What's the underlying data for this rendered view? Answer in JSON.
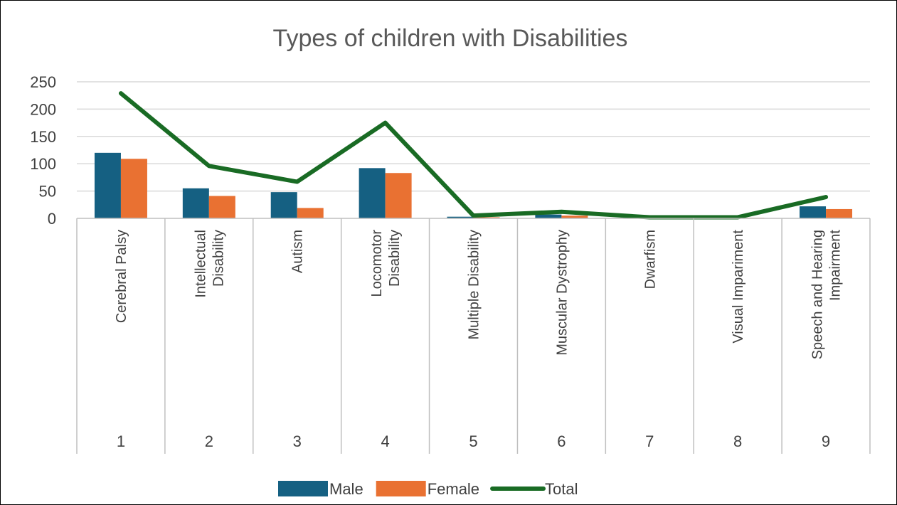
{
  "chart_data": {
    "type": "bar",
    "title": "Types of children with Disabilities",
    "xlabel": "",
    "ylabel": "",
    "ylim": [
      0,
      250
    ],
    "yticks": [
      0,
      50,
      100,
      150,
      200,
      250
    ],
    "grid": true,
    "legend_position": "bottom",
    "category_numbers": [
      "1",
      "2",
      "3",
      "4",
      "5",
      "6",
      "7",
      "8",
      "9"
    ],
    "categories": [
      [
        "Cerebral Palsy"
      ],
      [
        "Intellectual",
        "Disability"
      ],
      [
        "Autism"
      ],
      [
        "Locomotor",
        "Disability"
      ],
      [
        "Multiple Disability"
      ],
      [
        "Muscular Dystrophy"
      ],
      [
        "Dwarfism"
      ],
      [
        "Visual Impariment"
      ],
      [
        "Speech and Hearing",
        "Impairment"
      ]
    ],
    "series": [
      {
        "name": "Male",
        "kind": "bar",
        "color": "#156082",
        "values": [
          120,
          55,
          48,
          92,
          3,
          7,
          1,
          1,
          22
        ]
      },
      {
        "name": "Female",
        "kind": "bar",
        "color": "#E97132",
        "values": [
          109,
          41,
          19,
          83,
          2,
          5,
          1,
          1,
          17
        ]
      },
      {
        "name": "Total",
        "kind": "line",
        "color": "#196B24",
        "values": [
          229,
          96,
          67,
          175,
          5,
          12,
          2,
          2,
          39
        ]
      }
    ]
  }
}
